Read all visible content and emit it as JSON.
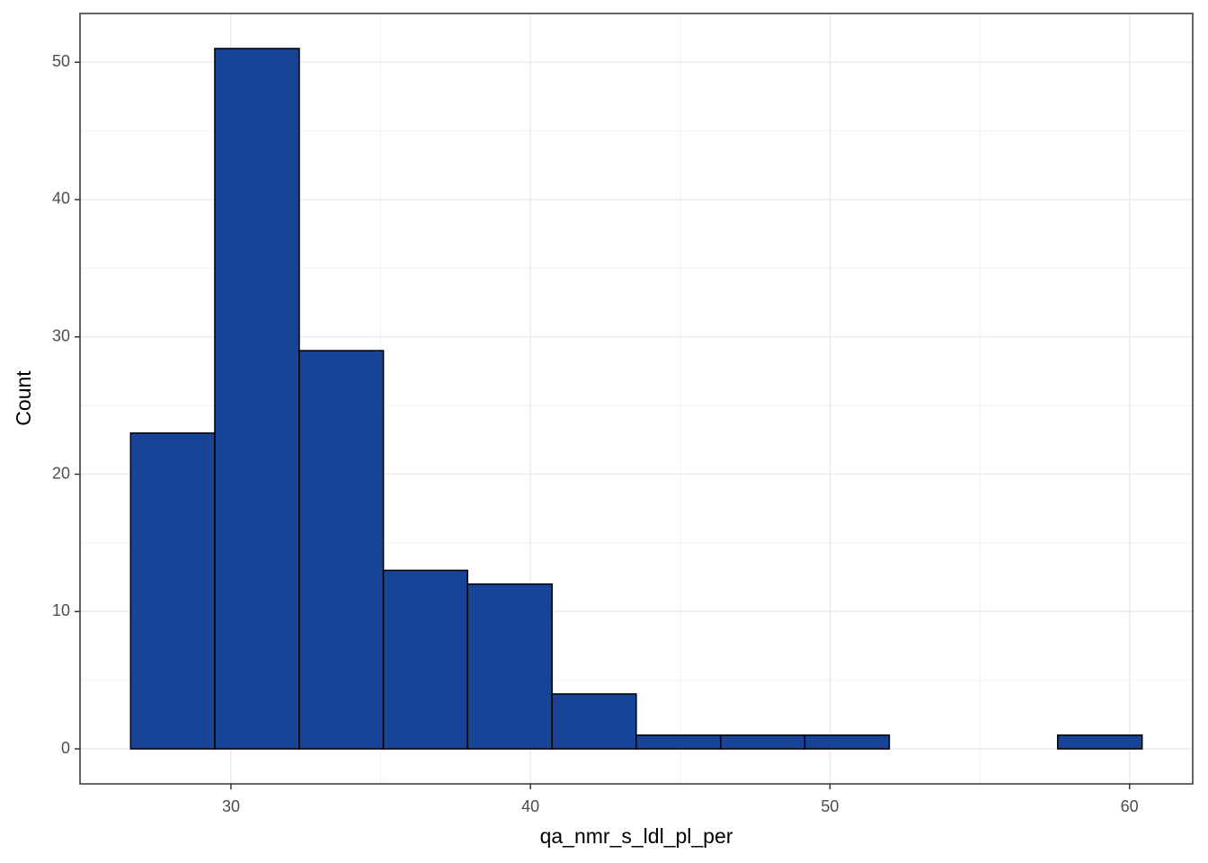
{
  "chart_data": {
    "type": "histogram",
    "x_label": "qa_nmr_s_ldl_pl_per",
    "y_label": "Count",
    "bins": [
      26.65,
      29.46,
      32.28,
      35.09,
      37.9,
      40.72,
      43.53,
      46.35,
      49.16,
      51.98,
      54.8,
      57.6,
      60.42
    ],
    "counts": [
      23,
      51,
      29,
      13,
      12,
      4,
      1,
      1,
      1,
      0,
      0,
      1
    ],
    "color": "#184497",
    "edge_color": "#000000",
    "xlim": [
      24.96,
      62.11
    ],
    "xticks": [
      30,
      40,
      50,
      60
    ],
    "xminor_ticks": [
      25,
      35,
      45,
      55
    ],
    "ylim": [
      -2.55,
      53.55
    ],
    "yticks": [
      0,
      10,
      20,
      30,
      40,
      50
    ],
    "yminor_ticks": [
      5,
      15,
      25,
      35,
      45
    ],
    "grid": true
  }
}
